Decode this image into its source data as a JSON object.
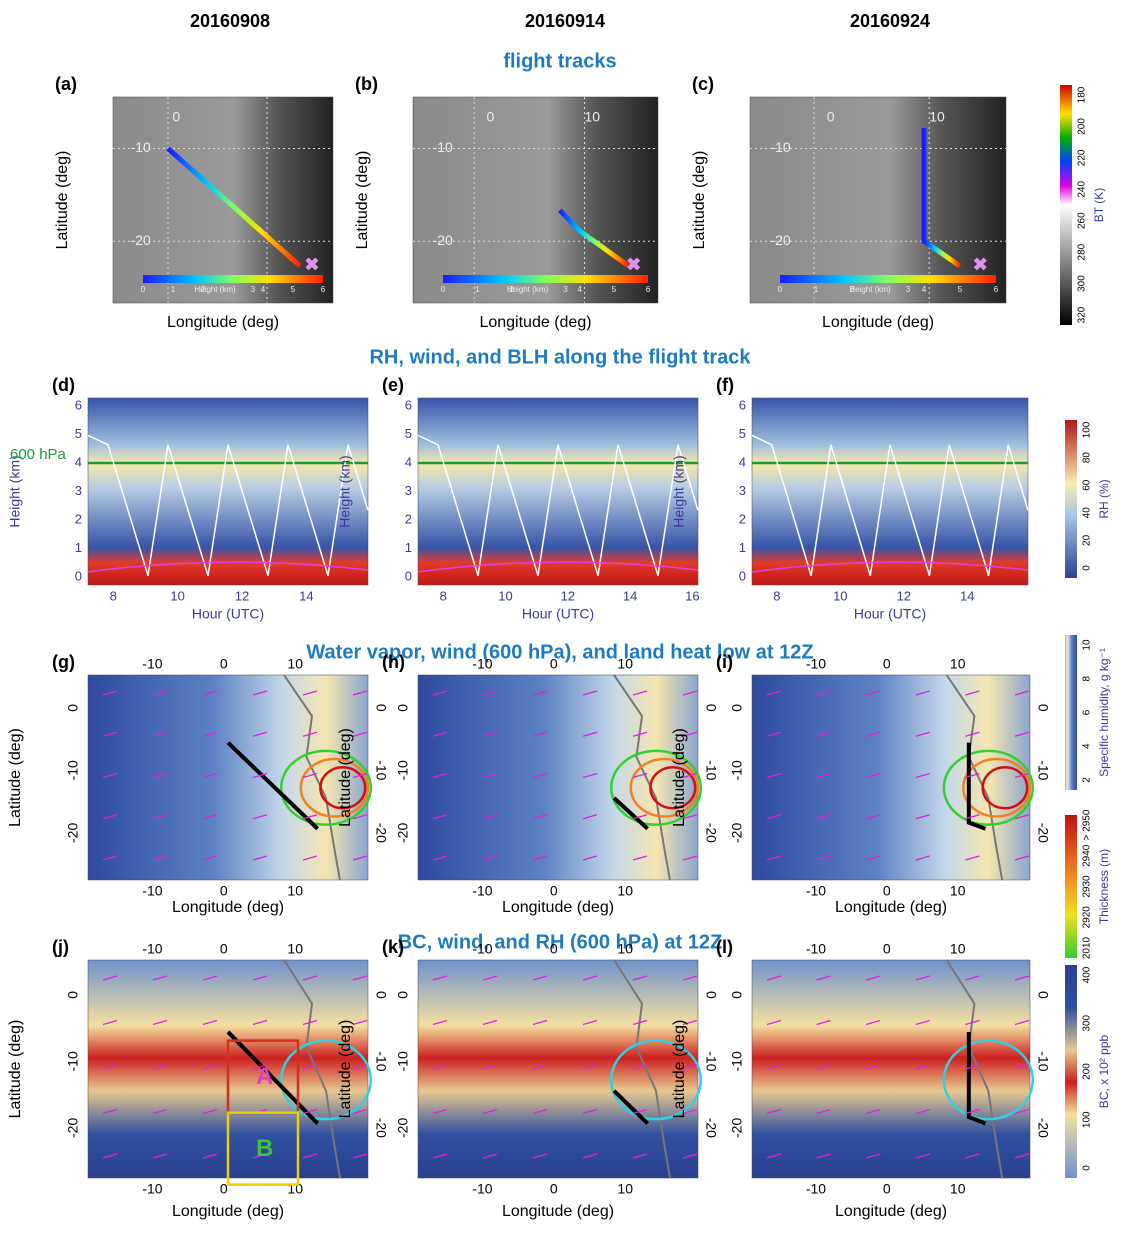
{
  "column_dates": [
    "20160908",
    "20160914",
    "20160924"
  ],
  "rows": [
    {
      "title": "flight tracks",
      "x_label": "Longitude (deg)",
      "y_label": "Latitude (deg)",
      "panels": [
        {
          "label": "(a)",
          "map_labels": [
            "0",
            "-10",
            "-20"
          ]
        },
        {
          "label": "(b)",
          "map_labels": [
            "0",
            "10",
            "-10",
            "-20"
          ]
        },
        {
          "label": "(c)",
          "map_labels": [
            "0",
            "10",
            "-10",
            "-20"
          ]
        }
      ],
      "inset_colorbar": {
        "ticks": [
          "0",
          "1",
          "2",
          "3",
          "4",
          "5",
          "6"
        ],
        "label": "Height (km)"
      }
    },
    {
      "title": "RH, wind, and BLH along the flight track",
      "x_label": "Hour (UTC)",
      "y_label": "Height (km)",
      "y_ticks": [
        "0",
        "1",
        "2",
        "3",
        "4",
        "5",
        "6"
      ],
      "annotation": "600 hPa",
      "panels": [
        {
          "label": "(d)",
          "x_ticks": [
            "8",
            "10",
            "12",
            "14"
          ]
        },
        {
          "label": "(e)",
          "x_ticks": [
            "8",
            "10",
            "12",
            "14",
            "16"
          ]
        },
        {
          "label": "(f)",
          "x_ticks": [
            "8",
            "10",
            "12",
            "14"
          ]
        }
      ]
    },
    {
      "title": "Water vapor, wind (600 hPa), and land heat low  at 12Z",
      "x_label": "Longitude (deg)",
      "y_label": "Latitude (deg)",
      "top_ticks": [
        "-10",
        "0",
        "10"
      ],
      "bottom_ticks": [
        "-10",
        "0",
        "10"
      ],
      "left_ticks": [
        "0",
        "-10",
        "-20"
      ],
      "right_ticks": [
        "0",
        "-10",
        "-20"
      ],
      "panels": [
        {
          "label": "(g)"
        },
        {
          "label": "(h)"
        },
        {
          "label": "(i)"
        }
      ]
    },
    {
      "title": "BC, wind, and RH  (600 hPa) at 12Z",
      "x_label": "Longitude (deg)",
      "y_label": "Latitude (deg)",
      "top_ticks": [
        "-10",
        "0",
        "10"
      ],
      "bottom_ticks": [
        "-10",
        "0",
        "10"
      ],
      "left_ticks": [
        "0",
        "-10",
        "-20"
      ],
      "right_ticks": [
        "0",
        "-10",
        "-20"
      ],
      "panels": [
        {
          "label": "(j)",
          "box_labels": [
            "A",
            "B"
          ]
        },
        {
          "label": "(k)"
        },
        {
          "label": "(l)"
        }
      ]
    }
  ],
  "colorbars": [
    {
      "label": "BT (K)",
      "ticks": [
        "180",
        "200",
        "220",
        "240",
        "260",
        "280",
        "300",
        "320"
      ]
    },
    {
      "label": "RH (%)",
      "ticks": [
        "0",
        "20",
        "40",
        "60",
        "80",
        "100"
      ]
    },
    {
      "label": "Specific humidity, g kg⁻¹",
      "ticks": [
        "2",
        "4",
        "6",
        "8",
        "10"
      ]
    },
    {
      "label": "Thickness (m)",
      "ticks": [
        "2010",
        "2920",
        "2930",
        "2940",
        "> 2950"
      ]
    },
    {
      "label": "BC, x 10² ppb",
      "ticks": [
        "0",
        "100",
        "200",
        "300",
        "400"
      ]
    }
  ]
}
